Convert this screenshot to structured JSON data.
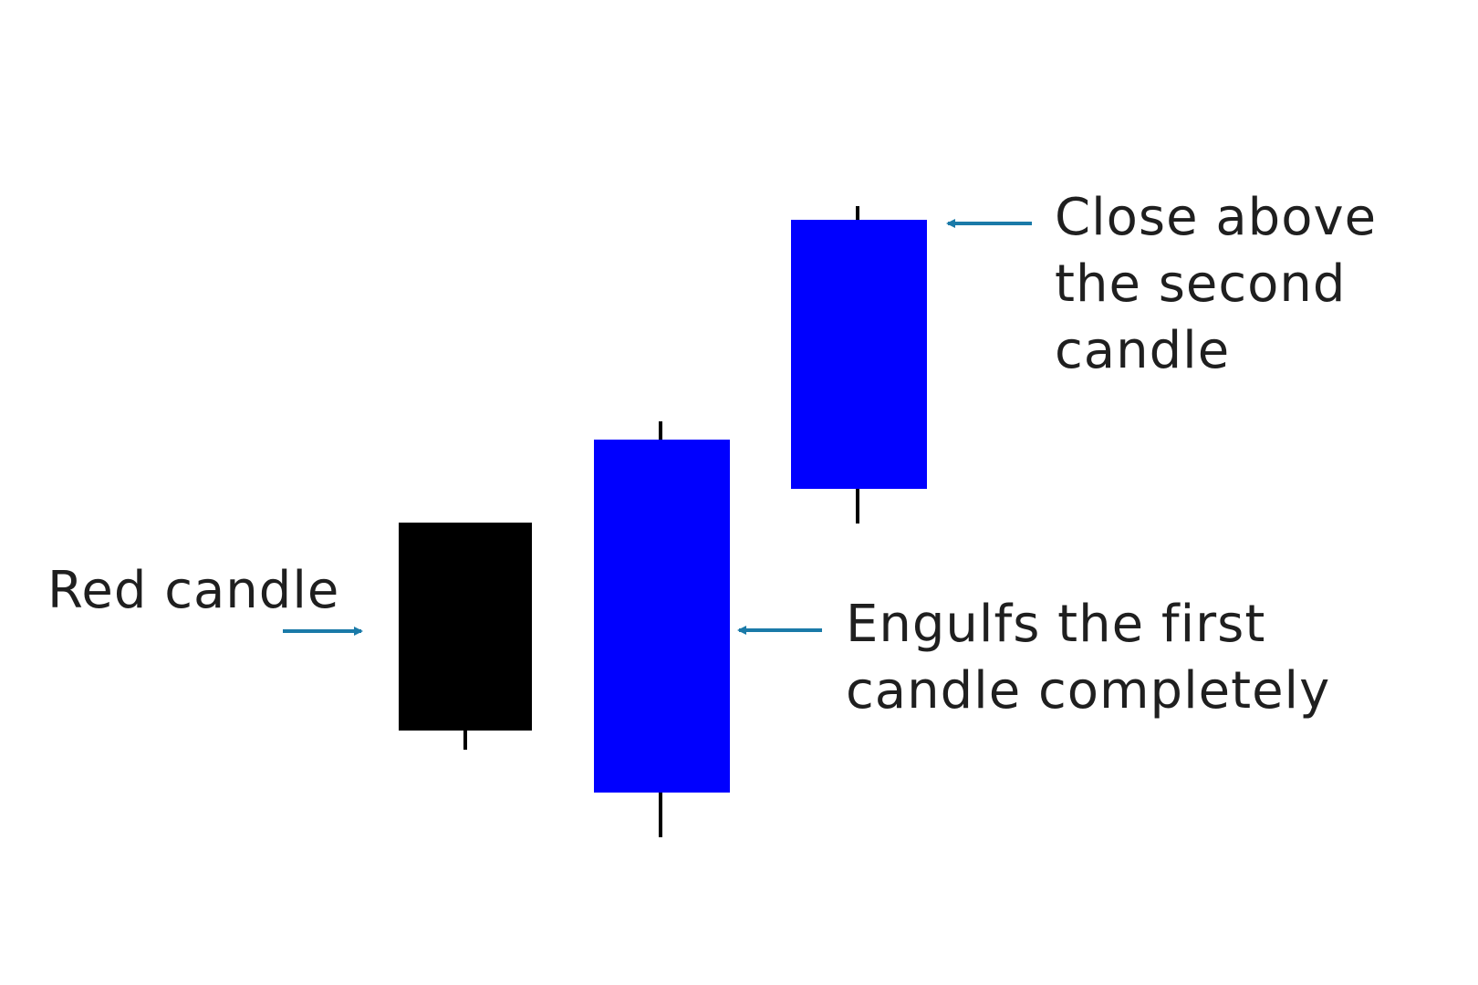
{
  "colors": {
    "bearish_body": "#000000",
    "bullish_body": "#0000ff",
    "wick": "#000000",
    "arrow": "#1a7aa8",
    "text": "#1f1f1f"
  },
  "candles": [
    {
      "role": "first",
      "color": "bearish_body"
    },
    {
      "role": "second",
      "color": "bullish_body"
    },
    {
      "role": "third",
      "color": "bullish_body"
    }
  ],
  "annotations": {
    "red_candle": "Red candle",
    "engulfs_line1": "Engulfs the first",
    "engulfs_line2": "candle completely",
    "close_line1": "Close above",
    "close_line2": "the second",
    "close_line3": "candle"
  },
  "icons": {
    "arrow_right": "arrow-right-icon",
    "arrow_left": "arrow-left-icon"
  }
}
